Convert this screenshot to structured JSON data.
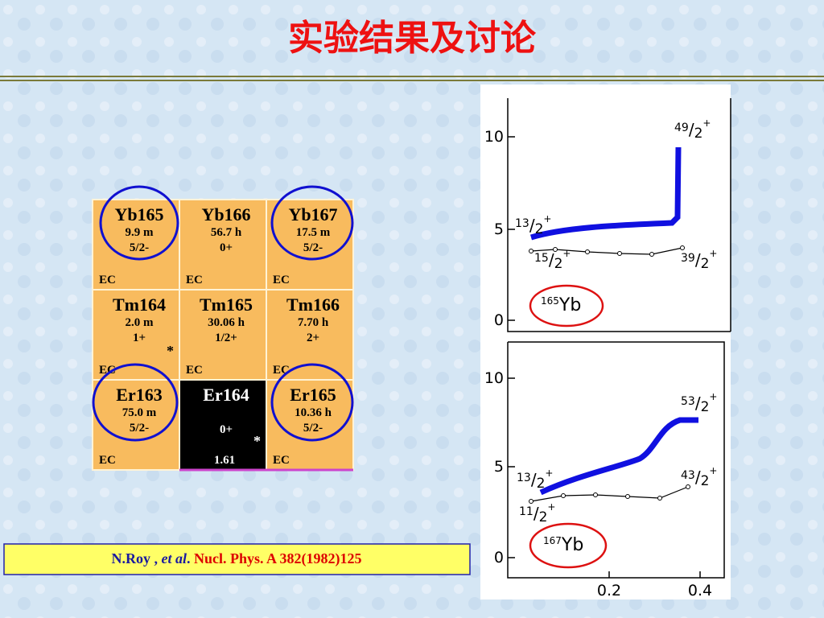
{
  "title": "实验结果及讨论",
  "nuclide_table": {
    "rows": [
      [
        {
          "name": "Yb165",
          "half_life": "9.9 m",
          "spin": "5/2-",
          "decay": "EC"
        },
        {
          "name": "Yb166",
          "half_life": "56.7 h",
          "spin": "0+",
          "decay": "EC"
        },
        {
          "name": "Yb167",
          "half_life": "17.5 m",
          "spin": "5/2-",
          "decay": "EC"
        }
      ],
      [
        {
          "name": "Tm164",
          "half_life": "2.0 m",
          "spin": "1+",
          "decay": "EC",
          "marker": "*"
        },
        {
          "name": "Tm165",
          "half_life": "30.06 h",
          "spin": "1/2+",
          "decay": "EC"
        },
        {
          "name": "Tm166",
          "half_life": "7.70 h",
          "spin": "2+",
          "decay": "EC"
        }
      ],
      [
        {
          "name": "Er163",
          "half_life": "75.0 m",
          "spin": "5/2-",
          "decay": "EC"
        },
        {
          "name": "Er164",
          "spin": "0+",
          "abundance": "1.61",
          "marker": "*"
        },
        {
          "name": "Er165",
          "half_life": "10.36 h",
          "spin": "5/2-",
          "decay": "EC"
        }
      ]
    ]
  },
  "reference": {
    "authors": "N.Roy ,",
    "etal": "et al",
    "dot": ".",
    "journal": "Nucl. Phys. A  382(1982)125"
  },
  "plots": [
    {
      "yticks": [
        "10",
        "5",
        "0"
      ],
      "labels": [
        {
          "num": "49",
          "den": "2",
          "sign": "+"
        },
        {
          "num": "13",
          "den": "2",
          "sign": "+"
        },
        {
          "num": "15",
          "den": "2",
          "sign": "+"
        },
        {
          "num": "39",
          "den": "2",
          "sign": "+"
        }
      ],
      "nucleus": {
        "mass": "165",
        "element": "Yb"
      }
    },
    {
      "yticks": [
        "10",
        "5",
        "0"
      ],
      "labels": [
        {
          "num": "53",
          "den": "2",
          "sign": "+"
        },
        {
          "num": "13",
          "den": "2",
          "sign": "+"
        },
        {
          "num": "43",
          "den": "2",
          "sign": "+"
        },
        {
          "num": "11",
          "den": "2",
          "sign": "+"
        }
      ],
      "nucleus": {
        "mass": "167",
        "element": "Yb"
      },
      "xticks": [
        "0.2",
        "0.4"
      ]
    }
  ]
}
